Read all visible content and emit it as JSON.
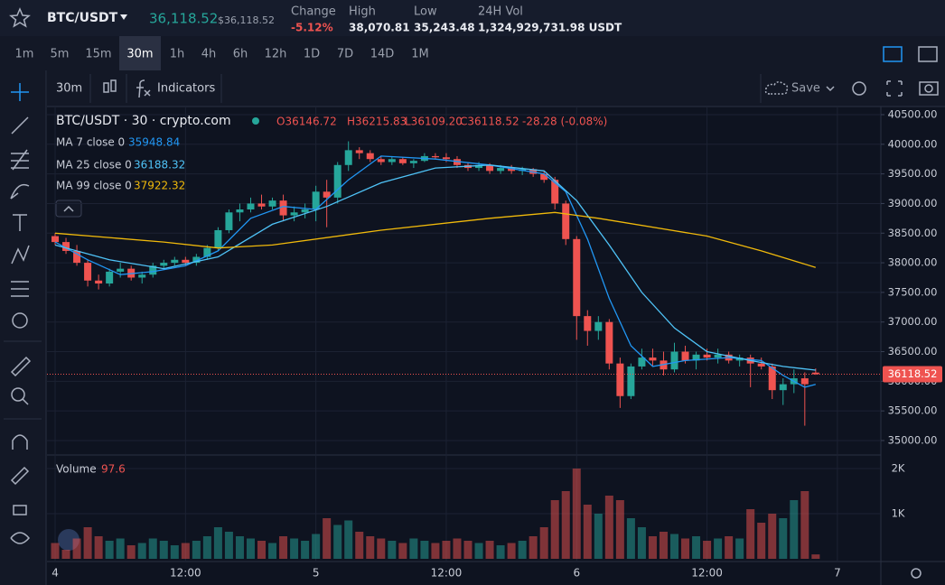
{
  "header": {
    "symbol": "BTC/USDT",
    "price": "36,118.52",
    "price_usd": "$36,118.52",
    "stats": [
      {
        "label": "Change",
        "value": "-5.12%"
      },
      {
        "label": "High",
        "value": "38,070.81"
      },
      {
        "label": "Low",
        "value": "35,243.48"
      },
      {
        "label": "24H Vol",
        "value": "1,324,929,731.98 USDT"
      }
    ]
  },
  "intervals": [
    "1m",
    "5m",
    "15m",
    "30m",
    "1h",
    "4h",
    "6h",
    "12h",
    "1D",
    "7D",
    "14D",
    "1M"
  ],
  "toolbar": {
    "interval": "30m",
    "indicators": "Indicators",
    "save": "Save"
  },
  "chart_data": {
    "type": "candlestick",
    "title": "BTC/USDT · 30 · crypto.com",
    "ohlc_legend": [
      "O36146.72",
      "H36215.83",
      "L36109.20",
      "C36118.52",
      "-28.28 (-0.08%)"
    ],
    "up_color": "#26a69a",
    "down_color": "#ef5350",
    "candles": [
      [
        38450,
        38500,
        38300,
        38350
      ],
      [
        38350,
        38420,
        38150,
        38200
      ],
      [
        38200,
        38300,
        37950,
        38000
      ],
      [
        38000,
        38050,
        37600,
        37700
      ],
      [
        37700,
        37800,
        37550,
        37650
      ],
      [
        37650,
        37900,
        37600,
        37850
      ],
      [
        37850,
        38000,
        37750,
        37900
      ],
      [
        37900,
        37950,
        37700,
        37750
      ],
      [
        37750,
        37850,
        37650,
        37800
      ],
      [
        37800,
        38000,
        37750,
        37950
      ],
      [
        37950,
        38050,
        37900,
        38000
      ],
      [
        38000,
        38100,
        37950,
        38050
      ],
      [
        38050,
        38100,
        37950,
        38000
      ],
      [
        38000,
        38150,
        37950,
        38100
      ],
      [
        38100,
        38300,
        38050,
        38250
      ],
      [
        38250,
        38600,
        38200,
        38550
      ],
      [
        38550,
        38900,
        38500,
        38850
      ],
      [
        38850,
        39000,
        38700,
        38900
      ],
      [
        38900,
        39100,
        38850,
        39000
      ],
      [
        39000,
        39150,
        38900,
        38950
      ],
      [
        38950,
        39100,
        38900,
        39050
      ],
      [
        39050,
        39150,
        38700,
        38800
      ],
      [
        38800,
        38950,
        38700,
        38850
      ],
      [
        38850,
        39000,
        38750,
        38900
      ],
      [
        38900,
        39300,
        38700,
        39200
      ],
      [
        39200,
        39400,
        38600,
        39100
      ],
      [
        39100,
        39700,
        39000,
        39650
      ],
      [
        39650,
        40050,
        39550,
        39900
      ],
      [
        39900,
        39950,
        39750,
        39850
      ],
      [
        39850,
        39900,
        39700,
        39750
      ],
      [
        39750,
        39800,
        39650,
        39700
      ],
      [
        39700,
        39800,
        39650,
        39750
      ],
      [
        39750,
        39780,
        39650,
        39680
      ],
      [
        39680,
        39750,
        39600,
        39720
      ],
      [
        39720,
        39850,
        39700,
        39800
      ],
      [
        39800,
        39850,
        39750,
        39780
      ],
      [
        39780,
        39850,
        39700,
        39750
      ],
      [
        39750,
        39800,
        39600,
        39650
      ],
      [
        39650,
        39700,
        39550,
        39600
      ],
      [
        39600,
        39700,
        39550,
        39650
      ],
      [
        39650,
        39680,
        39500,
        39550
      ],
      [
        39550,
        39650,
        39500,
        39600
      ],
      [
        39600,
        39650,
        39500,
        39550
      ],
      [
        39550,
        39620,
        39480,
        39580
      ],
      [
        39580,
        39600,
        39450,
        39500
      ],
      [
        39500,
        39550,
        39350,
        39400
      ],
      [
        39400,
        39450,
        38900,
        39000
      ],
      [
        39000,
        39050,
        38300,
        38400
      ],
      [
        38400,
        38450,
        36700,
        37100
      ],
      [
        37100,
        37200,
        36600,
        36850
      ],
      [
        36850,
        37100,
        36700,
        37000
      ],
      [
        37000,
        37050,
        36200,
        36300
      ],
      [
        36300,
        36400,
        35550,
        35750
      ],
      [
        35750,
        36300,
        35700,
        36250
      ],
      [
        36250,
        36550,
        36200,
        36400
      ],
      [
        36400,
        36550,
        36250,
        36350
      ],
      [
        36350,
        36500,
        36100,
        36200
      ],
      [
        36200,
        36650,
        36150,
        36500
      ],
      [
        36500,
        36600,
        36300,
        36350
      ],
      [
        36350,
        36500,
        36200,
        36450
      ],
      [
        36450,
        36550,
        36350,
        36400
      ],
      [
        36400,
        36550,
        36300,
        36450
      ],
      [
        36450,
        36500,
        36300,
        36350
      ],
      [
        36350,
        36450,
        36250,
        36400
      ],
      [
        36400,
        36450,
        35900,
        36300
      ],
      [
        36300,
        36400,
        36200,
        36250
      ],
      [
        36250,
        36300,
        35700,
        35850
      ],
      [
        35850,
        36050,
        35600,
        35950
      ],
      [
        35950,
        36200,
        35800,
        36050
      ],
      [
        36050,
        36150,
        35250,
        35950
      ],
      [
        36146.72,
        36215.83,
        36109.2,
        36118.52
      ]
    ],
    "volume_label": "Volume",
    "volume": [
      350,
      200,
      450,
      700,
      500,
      400,
      450,
      300,
      350,
      450,
      400,
      300,
      350,
      400,
      500,
      700,
      600,
      500,
      450,
      400,
      350,
      500,
      450,
      400,
      550,
      900,
      750,
      850,
      600,
      500,
      450,
      400,
      350,
      450,
      400,
      350,
      400,
      450,
      400,
      350,
      400,
      300,
      350,
      400,
      500,
      700,
      1300,
      1500,
      2000,
      1200,
      1000,
      1400,
      1300,
      900,
      700,
      500,
      600,
      550,
      450,
      500,
      400,
      450,
      500,
      450,
      1100,
      800,
      1000,
      900,
      1300,
      1500,
      97.6
    ],
    "series": [
      {
        "name": "MA 7 close 0",
        "color": "#2196f3",
        "x": [
          0,
          3,
          6,
          9,
          12,
          15,
          18,
          21,
          24,
          27,
          30,
          35,
          40,
          45,
          47,
          49,
          51,
          53,
          55,
          58,
          62,
          65,
          67,
          69,
          70
        ],
        "values": [
          38350,
          38050,
          37800,
          37850,
          37950,
          38200,
          38750,
          38950,
          38900,
          39400,
          39800,
          39750,
          39650,
          39500,
          39200,
          38400,
          37400,
          36600,
          36250,
          36350,
          36400,
          36350,
          36100,
          35900,
          35948.84
        ]
      },
      {
        "name": "MA 25 close 0",
        "color": "#4fc3f7",
        "x": [
          0,
          5,
          10,
          15,
          20,
          25,
          30,
          35,
          40,
          45,
          48,
          51,
          54,
          57,
          60,
          64,
          67,
          70
        ],
        "values": [
          38300,
          38050,
          37900,
          38100,
          38650,
          38950,
          39350,
          39600,
          39650,
          39550,
          39050,
          38300,
          37500,
          36900,
          36500,
          36350,
          36250,
          36188.32
        ]
      },
      {
        "name": "MA 99 close 0",
        "color": "#f0b90b",
        "x": [
          0,
          10,
          15,
          20,
          30,
          40,
          46,
          50,
          60,
          65,
          70
        ],
        "values": [
          38500,
          38350,
          38250,
          38300,
          38550,
          38750,
          38850,
          38750,
          38450,
          38200,
          37922.32
        ]
      }
    ],
    "xlim": [
      -0.5,
      76
    ],
    "xticks": [
      {
        "value": 0,
        "label": "4"
      },
      {
        "value": 12,
        "label": "12:00"
      },
      {
        "value": 24,
        "label": "5"
      },
      {
        "value": 36,
        "label": "12:00"
      },
      {
        "value": 48,
        "label": "6"
      },
      {
        "value": 60,
        "label": "12:00"
      },
      {
        "value": 72,
        "label": "7"
      }
    ],
    "ylim": [
      34771,
      40637
    ],
    "yticks": [
      {
        "value": 35000,
        "label": "35000.00"
      },
      {
        "value": 35500,
        "label": "35500.00"
      },
      {
        "value": 36000,
        "label": "36000.00"
      },
      {
        "value": 36500,
        "label": "36500.00"
      },
      {
        "value": 37000,
        "label": "37000.00"
      },
      {
        "value": 37500,
        "label": "37500.00"
      },
      {
        "value": 38000,
        "label": "38000.00"
      },
      {
        "value": 38500,
        "label": "38500.00"
      },
      {
        "value": 39000,
        "label": "39000.00"
      },
      {
        "value": 39500,
        "label": "39500.00"
      },
      {
        "value": 40000,
        "label": "40000.00"
      },
      {
        "value": 40500,
        "label": "40500.00"
      }
    ],
    "volume_ylim": [
      -60,
      2280
    ],
    "volume_yticks": [
      {
        "value": 1000,
        "label": "1K"
      },
      {
        "value": 2000,
        "label": "2K"
      }
    ],
    "grid": true
  }
}
